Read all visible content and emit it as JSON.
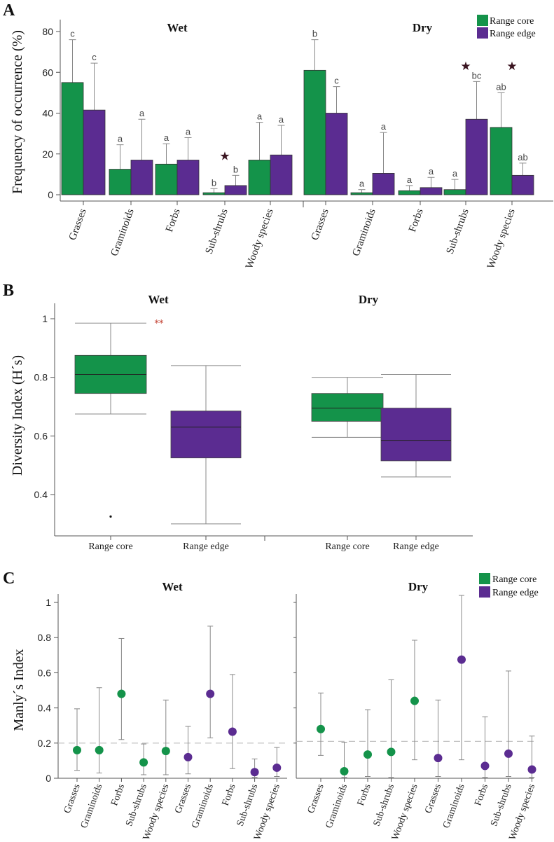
{
  "colors": {
    "core": "#14934a",
    "edge": "#5b2c91"
  },
  "legend": {
    "core": "Range core",
    "edge": "Range edge"
  },
  "chart_data": [
    {
      "panel": "A",
      "type": "bar",
      "ylabel": "Frequency of occurrence (%)",
      "ylim": [
        0,
        80
      ],
      "yticks": [
        "0",
        "20",
        "40",
        "60",
        "80"
      ],
      "categories": [
        "Grasses",
        "Graminoids",
        "Forbs",
        "Sub-shrubs",
        "Woody species"
      ],
      "legend_position": "top-right",
      "groups": [
        {
          "title": "Wet",
          "series": [
            {
              "name": "Range core",
              "values": [
                55,
                12.5,
                15,
                1,
                17
              ],
              "errors": [
                76,
                24.5,
                25,
                3,
                35.5
              ],
              "letters": [
                "c",
                "a",
                "a",
                "b",
                "a"
              ]
            },
            {
              "name": "Range edge",
              "values": [
                41.5,
                17,
                17,
                4.5,
                19.5
              ],
              "errors": [
                64.5,
                37,
                28,
                9.5,
                34
              ],
              "letters": [
                "c",
                "a",
                "a",
                "b",
                "a"
              ]
            }
          ],
          "stars": [
            false,
            false,
            false,
            true,
            false
          ]
        },
        {
          "title": "Dry",
          "series": [
            {
              "name": "Range core",
              "values": [
                61,
                1,
                2,
                2.5,
                33
              ],
              "errors": [
                76,
                2.5,
                4.5,
                7.5,
                50
              ],
              "letters": [
                "b",
                "a",
                "a",
                "a",
                "ab"
              ]
            },
            {
              "name": "Range edge",
              "values": [
                40,
                10.5,
                3.5,
                37,
                9.5
              ],
              "errors": [
                53,
                30.5,
                8.5,
                55.5,
                15.5
              ],
              "letters": [
                "c",
                "a",
                "a",
                "bc",
                "ab"
              ]
            }
          ],
          "stars": [
            false,
            false,
            false,
            true,
            true
          ]
        }
      ]
    },
    {
      "panel": "B",
      "type": "boxplot",
      "ylabel": "Diversity Index (H´s)",
      "ylim": [
        0.28,
        1.05
      ],
      "yticks": [
        "0.4",
        "0.6",
        "0.8",
        "1"
      ],
      "groups": [
        {
          "title": "Wet",
          "significance": "**",
          "boxes": [
            {
              "label": "Range core",
              "min": 0.675,
              "q1": 0.745,
              "median": 0.81,
              "q3": 0.875,
              "max": 0.985,
              "outliers": [
                0.325
              ]
            },
            {
              "label": "Range edge",
              "min": 0.3,
              "q1": 0.525,
              "median": 0.63,
              "q3": 0.685,
              "max": 0.84,
              "outliers": []
            }
          ]
        },
        {
          "title": "Dry",
          "boxes": [
            {
              "label": "Range core",
              "min": 0.595,
              "q1": 0.65,
              "median": 0.695,
              "q3": 0.745,
              "max": 0.8,
              "outliers": []
            },
            {
              "label": "Range edge",
              "min": 0.46,
              "q1": 0.515,
              "median": 0.585,
              "q3": 0.695,
              "max": 0.81,
              "outliers": []
            }
          ]
        }
      ]
    },
    {
      "panel": "C",
      "type": "scatter",
      "ylabel": "Manly´s Index",
      "ylim": [
        0,
        1.05
      ],
      "yticks": [
        "0",
        "0.2",
        "0.4",
        "0.6",
        "0.8",
        "1"
      ],
      "legend_position": "top-right",
      "groups": [
        {
          "title": "Wet",
          "reference": 0.2,
          "points": [
            {
              "label": "Grasses",
              "series": "Range core",
              "value": 0.16,
              "low": 0.045,
              "high": 0.395
            },
            {
              "label": "Graminoids",
              "series": "Range core",
              "value": 0.16,
              "low": 0.03,
              "high": 0.515
            },
            {
              "label": "Forbs",
              "series": "Range core",
              "value": 0.48,
              "low": 0.22,
              "high": 0.795
            },
            {
              "label": "Sub-shrubs",
              "series": "Range core",
              "value": 0.09,
              "low": 0.02,
              "high": 0.195
            },
            {
              "label": "Woody species",
              "series": "Range core",
              "value": 0.155,
              "low": 0.02,
              "high": 0.445
            },
            {
              "label": "Grasses",
              "series": "Range edge",
              "value": 0.12,
              "low": 0.025,
              "high": 0.295
            },
            {
              "label": "Graminoids",
              "series": "Range edge",
              "value": 0.48,
              "low": 0.23,
              "high": 0.865
            },
            {
              "label": "Forbs",
              "series": "Range edge",
              "value": 0.265,
              "low": 0.055,
              "high": 0.59
            },
            {
              "label": "Sub-shrubs",
              "series": "Range edge",
              "value": 0.035,
              "low": 0.005,
              "high": 0.11
            },
            {
              "label": "Woody species",
              "series": "Range edge",
              "value": 0.06,
              "low": 0.01,
              "high": 0.175
            }
          ]
        },
        {
          "title": "Dry",
          "reference": 0.21,
          "points": [
            {
              "label": "Grasses",
              "series": "Range core",
              "value": 0.28,
              "low": 0.13,
              "high": 0.485
            },
            {
              "label": "Graminoids",
              "series": "Range core",
              "value": 0.04,
              "low": 0.005,
              "high": 0.205
            },
            {
              "label": "Forbs",
              "series": "Range core",
              "value": 0.135,
              "low": 0.01,
              "high": 0.39
            },
            {
              "label": "Sub-shrubs",
              "series": "Range core",
              "value": 0.15,
              "low": 0.005,
              "high": 0.56
            },
            {
              "label": "Woody species",
              "series": "Range core",
              "value": 0.44,
              "low": 0.105,
              "high": 0.785
            },
            {
              "label": "Grasses",
              "series": "Range edge",
              "value": 0.115,
              "low": 0.01,
              "high": 0.445
            },
            {
              "label": "Graminoids",
              "series": "Range edge",
              "value": 0.675,
              "low": 0.105,
              "high": 1.04
            },
            {
              "label": "Forbs",
              "series": "Range edge",
              "value": 0.07,
              "low": 0.005,
              "high": 0.35
            },
            {
              "label": "Sub-shrubs",
              "series": "Range edge",
              "value": 0.14,
              "low": 0.01,
              "high": 0.61
            },
            {
              "label": "Woody species",
              "series": "Range edge",
              "value": 0.05,
              "low": 0.005,
              "high": 0.24
            }
          ]
        }
      ]
    }
  ]
}
